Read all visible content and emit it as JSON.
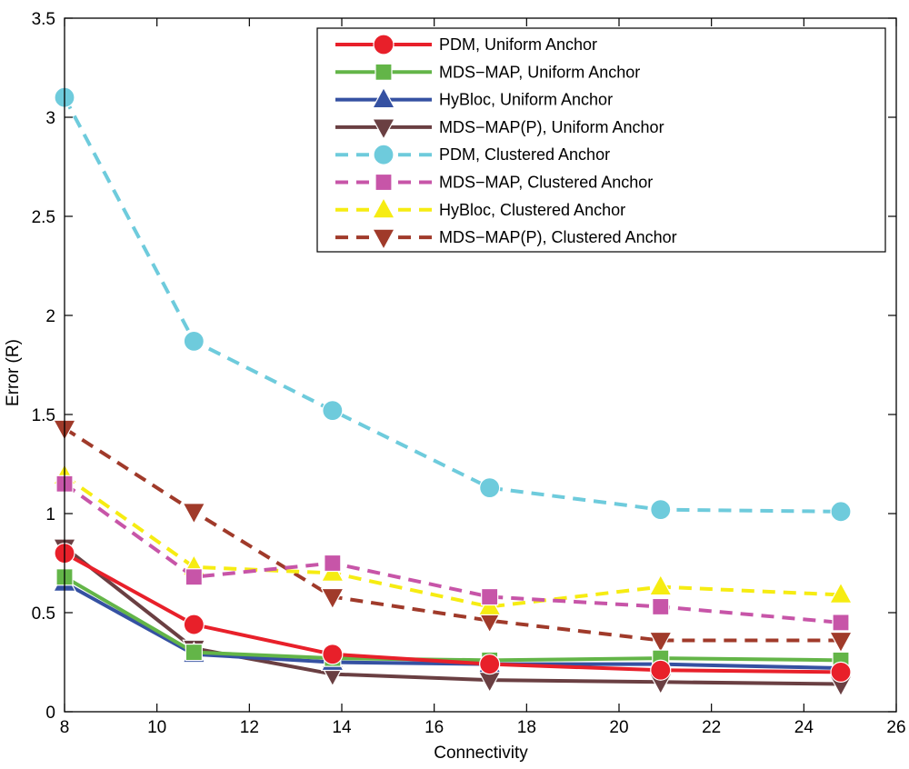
{
  "chart_data": {
    "type": "line",
    "title": "",
    "xlabel": "Connectivity",
    "ylabel": "Error (R)",
    "xlim": [
      8,
      26
    ],
    "ylim": [
      0,
      3.5
    ],
    "xticks": [
      8,
      10,
      12,
      14,
      16,
      18,
      20,
      22,
      24,
      26
    ],
    "yticks": [
      0,
      0.5,
      1,
      1.5,
      2,
      2.5,
      3,
      3.5
    ],
    "xtick_labels": [
      "8",
      "10",
      "12",
      "14",
      "16",
      "18",
      "20",
      "22",
      "24",
      "26"
    ],
    "ytick_labels": [
      "0",
      "0.5",
      "1",
      "1.5",
      "2",
      "2.5",
      "3",
      "3.5"
    ],
    "grid": false,
    "legend_position": "top-right",
    "x": [
      8,
      10.8,
      13.8,
      17.2,
      20.9,
      24.8
    ],
    "series": [
      {
        "name": "PDM, Uniform Anchor",
        "values": [
          0.8,
          0.44,
          0.29,
          0.24,
          0.21,
          0.2
        ],
        "color": "#e8202a",
        "dashed": false,
        "marker": "circle"
      },
      {
        "name": "MDS−MAP, Uniform Anchor",
        "values": [
          0.68,
          0.3,
          0.27,
          0.26,
          0.27,
          0.26
        ],
        "color": "#63b548",
        "dashed": false,
        "marker": "square"
      },
      {
        "name": "HyBloc, Uniform Anchor",
        "values": [
          0.65,
          0.29,
          0.25,
          0.24,
          0.24,
          0.22
        ],
        "color": "#3551a2",
        "dashed": false,
        "marker": "triangle-up"
      },
      {
        "name": "MDS−MAP(P), Uniform Anchor",
        "values": [
          0.83,
          0.32,
          0.19,
          0.16,
          0.15,
          0.14
        ],
        "color": "#6a3f42",
        "dashed": false,
        "marker": "triangle-down"
      },
      {
        "name": "PDM, Clustered Anchor",
        "values": [
          3.1,
          1.87,
          1.52,
          1.13,
          1.02,
          1.01
        ],
        "color": "#6ecbdc",
        "dashed": true,
        "marker": "circle"
      },
      {
        "name": "MDS−MAP, Clustered Anchor",
        "values": [
          1.15,
          0.68,
          0.75,
          0.58,
          0.53,
          0.45
        ],
        "color": "#c755a8",
        "dashed": true,
        "marker": "square"
      },
      {
        "name": "HyBloc, Clustered Anchor",
        "values": [
          1.19,
          0.73,
          0.7,
          0.53,
          0.63,
          0.59
        ],
        "color": "#f6ec12",
        "dashed": true,
        "marker": "triangle-up"
      },
      {
        "name": "MDS−MAP(P), Clustered Anchor",
        "values": [
          1.43,
          1.01,
          0.58,
          0.46,
          0.36,
          0.36
        ],
        "color": "#a03a2a",
        "dashed": true,
        "marker": "triangle-down"
      }
    ]
  }
}
